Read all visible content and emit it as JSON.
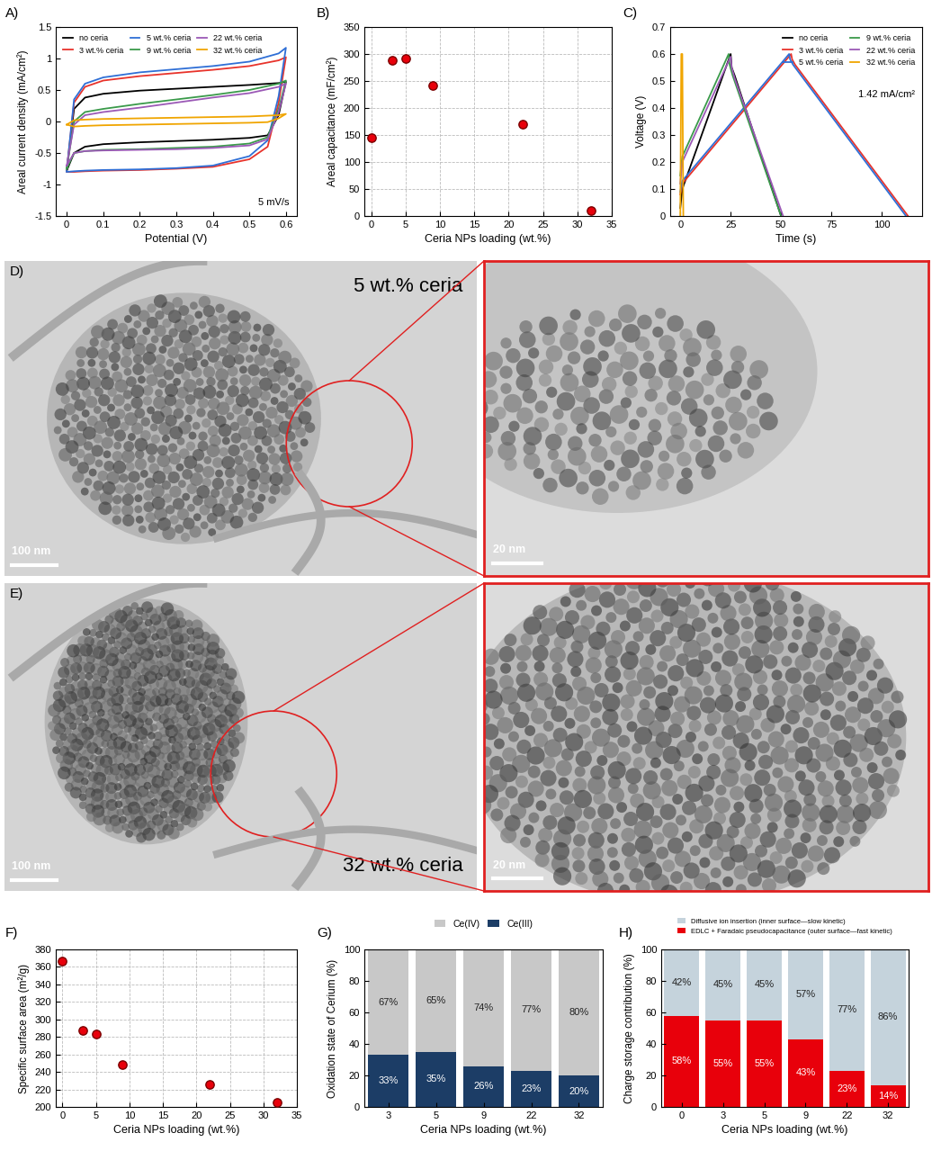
{
  "chart_data": [
    {
      "type": "line",
      "title": "A)",
      "xlabel": "Potential (V)",
      "ylabel": "Areal current density (mA/cm²)",
      "annotation": "5 mV/s",
      "legend": "upper left",
      "x": [
        0,
        0.02,
        0.05,
        0.1,
        0.2,
        0.3,
        0.4,
        0.5,
        0.58,
        0.6,
        0.6,
        0.58,
        0.55,
        0.5,
        0.4,
        0.3,
        0.2,
        0.1,
        0.05,
        0.02,
        0
      ],
      "xlim": [
        -0.03,
        0.63
      ],
      "xticks": [
        0,
        0.1,
        0.2,
        0.3,
        0.4,
        0.5,
        0.6
      ],
      "ylim": [
        -1.5,
        1.5
      ],
      "yticks": [
        -1.5,
        -1,
        -0.5,
        0,
        0.5,
        1,
        1.5
      ],
      "series": [
        {
          "name": "no ceria",
          "color": "#000000",
          "values": [
            -0.78,
            0.2,
            0.38,
            0.44,
            0.49,
            0.52,
            0.55,
            0.58,
            0.61,
            0.63,
            0.63,
            0.1,
            -0.22,
            -0.26,
            -0.29,
            -0.31,
            -0.33,
            -0.36,
            -0.4,
            -0.5,
            -0.78
          ]
        },
        {
          "name": "3 wt.% ceria",
          "color": "#e8332b",
          "values": [
            -0.78,
            0.3,
            0.55,
            0.65,
            0.72,
            0.77,
            0.82,
            0.88,
            0.97,
            1.02,
            1.02,
            0.3,
            -0.4,
            -0.6,
            -0.72,
            -0.75,
            -0.77,
            -0.78,
            -0.79,
            -0.8,
            -0.8
          ]
        },
        {
          "name": "5 wt.% ceria",
          "color": "#2f6fd6",
          "values": [
            -0.78,
            0.35,
            0.6,
            0.7,
            0.78,
            0.83,
            0.88,
            0.95,
            1.08,
            1.17,
            1.17,
            0.4,
            -0.3,
            -0.55,
            -0.7,
            -0.74,
            -0.76,
            -0.77,
            -0.78,
            -0.79,
            -0.8
          ]
        },
        {
          "name": "9 wt.% ceria",
          "color": "#3a9a4a",
          "values": [
            -0.75,
            0.0,
            0.15,
            0.2,
            0.28,
            0.35,
            0.42,
            0.5,
            0.6,
            0.65,
            0.65,
            0.2,
            -0.25,
            -0.35,
            -0.4,
            -0.42,
            -0.44,
            -0.45,
            -0.47,
            -0.5,
            -0.75
          ]
        },
        {
          "name": "22 wt.% ceria",
          "color": "#9b59b6",
          "values": [
            -0.7,
            -0.05,
            0.1,
            0.15,
            0.22,
            0.3,
            0.38,
            0.45,
            0.55,
            0.6,
            0.6,
            0.15,
            -0.28,
            -0.38,
            -0.42,
            -0.44,
            -0.45,
            -0.46,
            -0.47,
            -0.5,
            -0.7
          ]
        },
        {
          "name": "32 wt.% ceria",
          "color": "#f0a500",
          "values": [
            -0.05,
            0.02,
            0.03,
            0.04,
            0.05,
            0.06,
            0.07,
            0.08,
            0.1,
            0.12,
            0.12,
            0.05,
            -0.01,
            -0.02,
            -0.03,
            -0.04,
            -0.05,
            -0.06,
            -0.07,
            -0.08,
            -0.05
          ]
        }
      ]
    },
    {
      "type": "scatter",
      "title": "B)",
      "xlabel": "Ceria NPs loading (wt.%)",
      "ylabel": "Areal capacitance (mF/cm²)",
      "x": [
        0,
        3,
        5,
        9,
        22,
        32
      ],
      "values": [
        145,
        288,
        292,
        242,
        170,
        10
      ],
      "color": "#e8000b",
      "xlim": [
        -1,
        35
      ],
      "xticks": [
        0,
        5,
        10,
        15,
        20,
        25,
        30,
        35
      ],
      "ylim": [
        0,
        350
      ],
      "yticks": [
        0,
        50,
        100,
        150,
        200,
        250,
        300,
        350
      ],
      "grid": true
    },
    {
      "type": "line",
      "title": "C)",
      "xlabel": "Time (s)",
      "ylabel": "Voltage (V)",
      "annotation": "1.42 mA/cm²",
      "legend": "upper right",
      "xlim": [
        -5,
        120
      ],
      "xticks": [
        0,
        25,
        50,
        75,
        100
      ],
      "ylim": [
        0,
        0.7
      ],
      "yticks": [
        0,
        0.1,
        0.2,
        0.3,
        0.4,
        0.5,
        0.6,
        0.7
      ],
      "series": [
        {
          "name": "no ceria",
          "color": "#000000",
          "x": [
            0,
            1,
            25,
            25.5,
            27,
            50
          ],
          "values": [
            0.03,
            0.1,
            0.6,
            0.55,
            0.52,
            0.0
          ]
        },
        {
          "name": "3 wt.% ceria",
          "color": "#e8332b",
          "x": [
            0,
            1,
            55,
            55.5,
            57,
            113
          ],
          "values": [
            0.08,
            0.12,
            0.6,
            0.58,
            0.56,
            0.0
          ]
        },
        {
          "name": "5 wt.% ceria",
          "color": "#2f6fd6",
          "x": [
            0,
            1,
            54,
            54.5,
            56,
            112
          ],
          "values": [
            0.09,
            0.13,
            0.6,
            0.58,
            0.56,
            0.0
          ]
        },
        {
          "name": "9 wt.% ceria",
          "color": "#3a9a4a",
          "x": [
            0,
            1,
            24,
            24.5,
            26,
            50
          ],
          "values": [
            0.15,
            0.22,
            0.6,
            0.56,
            0.52,
            0.0
          ]
        },
        {
          "name": "22 wt.% ceria",
          "color": "#9b59b6",
          "x": [
            0,
            1,
            25,
            25.5,
            27,
            51
          ],
          "values": [
            0.12,
            0.2,
            0.59,
            0.55,
            0.51,
            0.0
          ]
        },
        {
          "name": "32 wt.% ceria",
          "color": "#f0a500",
          "x": [
            0,
            0.5,
            1,
            1.5
          ],
          "values": [
            0.0,
            0.6,
            0.6,
            0.0
          ]
        }
      ]
    },
    {
      "type": "scatter",
      "title": "F)",
      "xlabel": "Ceria NPs loading (wt.%)",
      "ylabel": "Specific surface area (m²/g)",
      "x": [
        0,
        3,
        5,
        9,
        22,
        32
      ],
      "values": [
        367,
        287,
        283,
        248,
        226,
        205
      ],
      "color": "#e8000b",
      "xlim": [
        -1,
        35
      ],
      "xticks": [
        0,
        5,
        10,
        15,
        20,
        25,
        30,
        35
      ],
      "ylim": [
        200,
        380
      ],
      "yticks": [
        200,
        220,
        240,
        260,
        280,
        300,
        320,
        340,
        360,
        380
      ],
      "grid": true
    },
    {
      "type": "bar",
      "title": "G)",
      "xlabel": "Ceria NPs loading (wt.%)",
      "ylabel": "Oxidation state of Cerium (%)",
      "stacked": true,
      "data_labels": true,
      "legend": "upper center",
      "categories": [
        "3",
        "5",
        "9",
        "22",
        "32"
      ],
      "ylim": [
        0,
        100
      ],
      "yticks": [
        0,
        20,
        40,
        60,
        80,
        100
      ],
      "series": [
        {
          "name": "Ce(III)",
          "color": "#1c3d66",
          "values": [
            33,
            35,
            26,
            23,
            20
          ],
          "value_labels": [
            "33%",
            "35%",
            "26%",
            "23%",
            "20%"
          ]
        },
        {
          "name": "Ce(IV)",
          "color": "#c8c8c8",
          "values": [
            67,
            65,
            74,
            77,
            80
          ],
          "value_labels": [
            "67%",
            "65%",
            "74%",
            "77%",
            "80%"
          ]
        }
      ]
    },
    {
      "type": "bar",
      "title": "H)",
      "xlabel": "Ceria NPs loading (wt.%)",
      "ylabel": "Charge storage contribution (%)",
      "stacked": true,
      "data_labels": true,
      "legend": "upper center",
      "categories": [
        "0",
        "3",
        "5",
        "9",
        "22",
        "32"
      ],
      "ylim": [
        0,
        100
      ],
      "yticks": [
        0,
        20,
        40,
        60,
        80,
        100
      ],
      "series": [
        {
          "name": "EDLC + Faradaic pseudocapacitance (outer surface—fast kinetic)",
          "color": "#e8000b",
          "values": [
            58,
            55,
            55,
            43,
            23,
            14
          ],
          "value_labels": [
            "58%",
            "55%",
            "55%",
            "43%",
            "23%",
            "14%"
          ]
        },
        {
          "name": "Diffusive ion insertion (inner surface—slow kinetic)",
          "color": "#c5d3dc",
          "values": [
            42,
            45,
            45,
            57,
            77,
            86
          ],
          "value_labels": [
            "42%",
            "45%",
            "45%",
            "57%",
            "77%",
            "86%"
          ]
        }
      ]
    }
  ],
  "micrographs": [
    {
      "label": "D)",
      "sample": "5 wt.% ceria",
      "scale_bar": "100 nm",
      "zoom_scale_bar": "20 nm"
    },
    {
      "label": "E)",
      "sample": "32 wt.% ceria",
      "scale_bar": "100 nm",
      "zoom_scale_bar": "20 nm"
    }
  ]
}
